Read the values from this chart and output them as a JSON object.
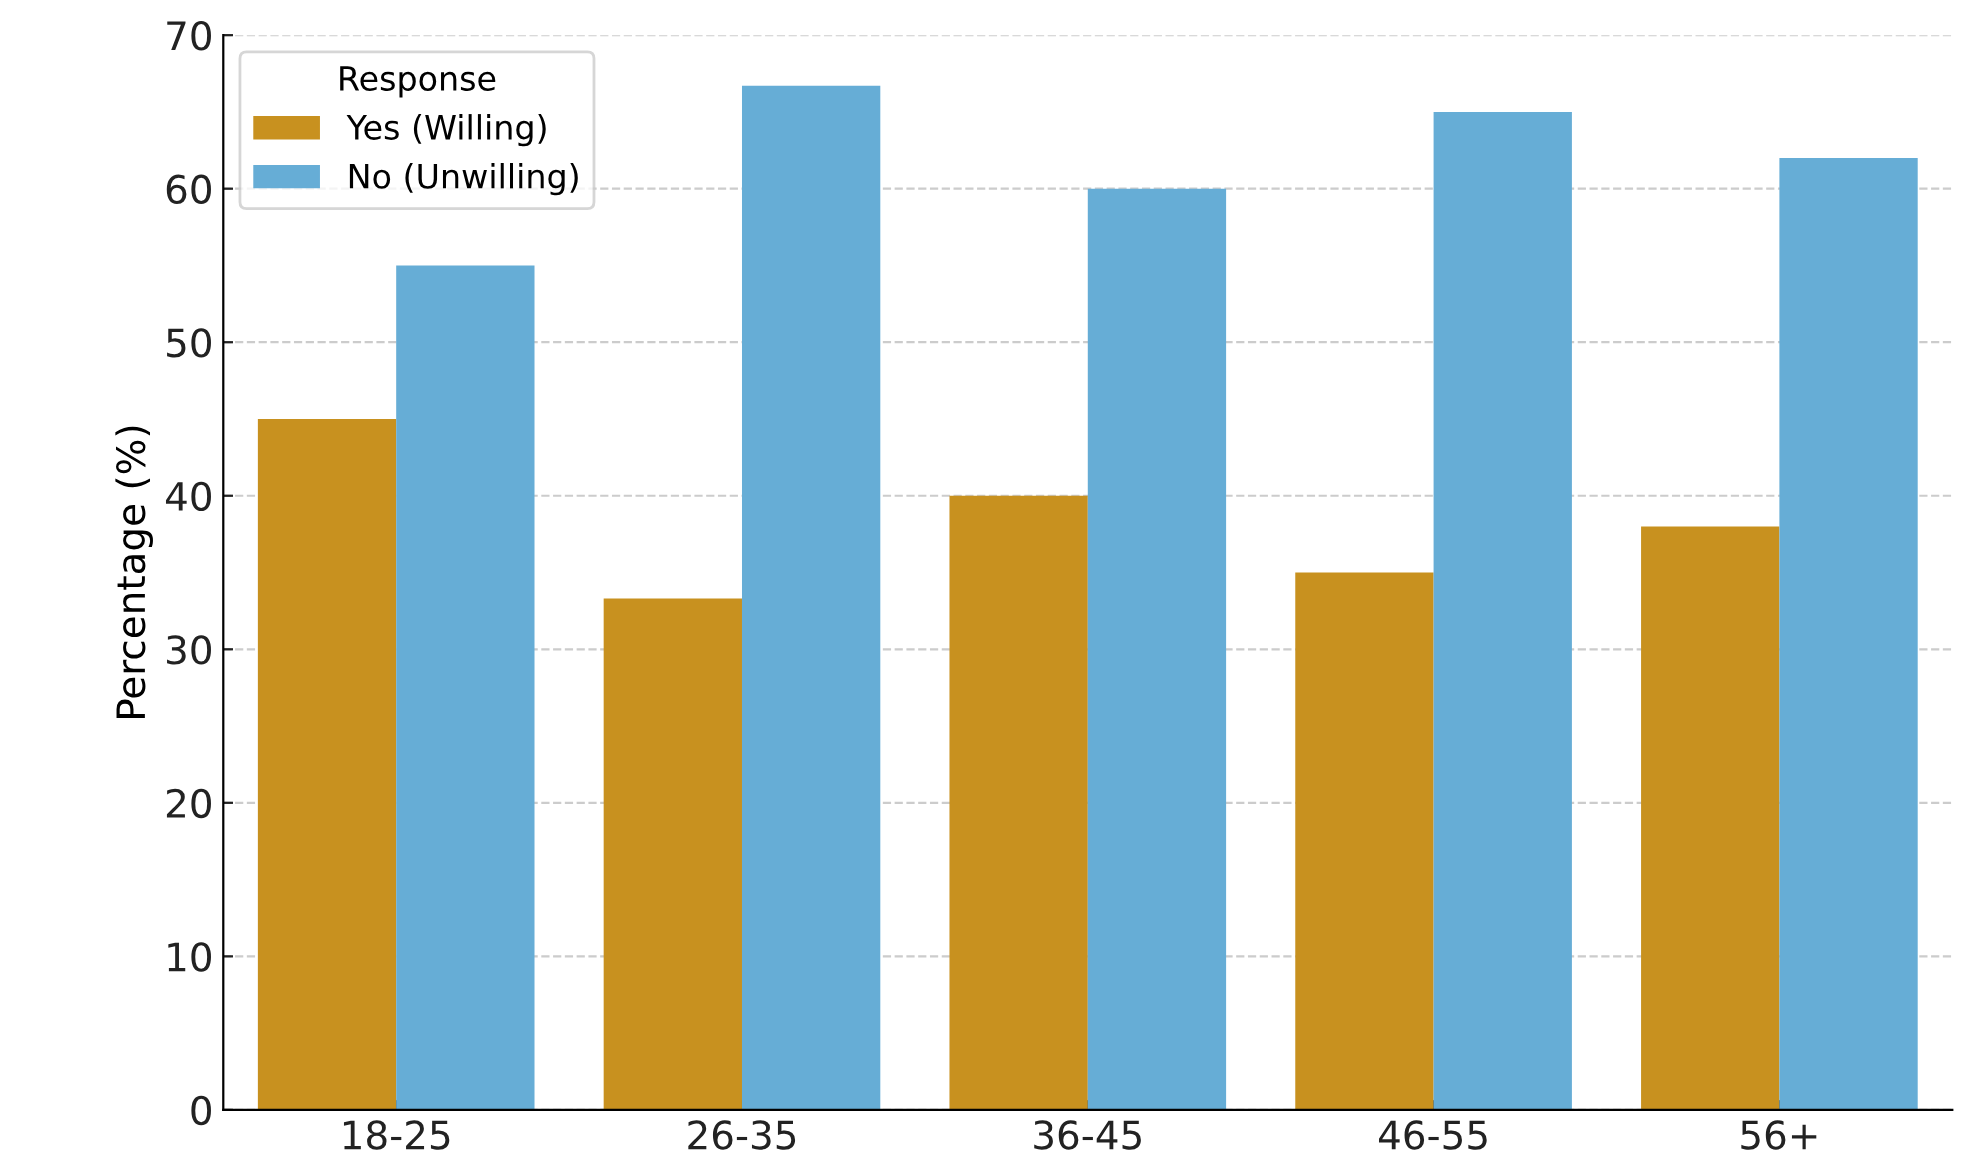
{
  "chart_data": {
    "type": "bar",
    "ylabel": "Percentage (%)",
    "legend_title": "Response",
    "categories": [
      "18-25",
      "26-35",
      "36-45",
      "46-55",
      "56+"
    ],
    "series": [
      {
        "name": "Yes (Willing)",
        "color": "#c8911f",
        "values": [
          45,
          33.3,
          40,
          35,
          38
        ]
      },
      {
        "name": "No (Unwilling)",
        "color": "#66add6",
        "values": [
          55,
          66.7,
          60,
          65,
          62
        ]
      }
    ],
    "ylim": [
      0,
      70
    ],
    "yticks": [
      0,
      10,
      20,
      30,
      40,
      50,
      60,
      70
    ],
    "grid": "y",
    "legend": "top left"
  }
}
